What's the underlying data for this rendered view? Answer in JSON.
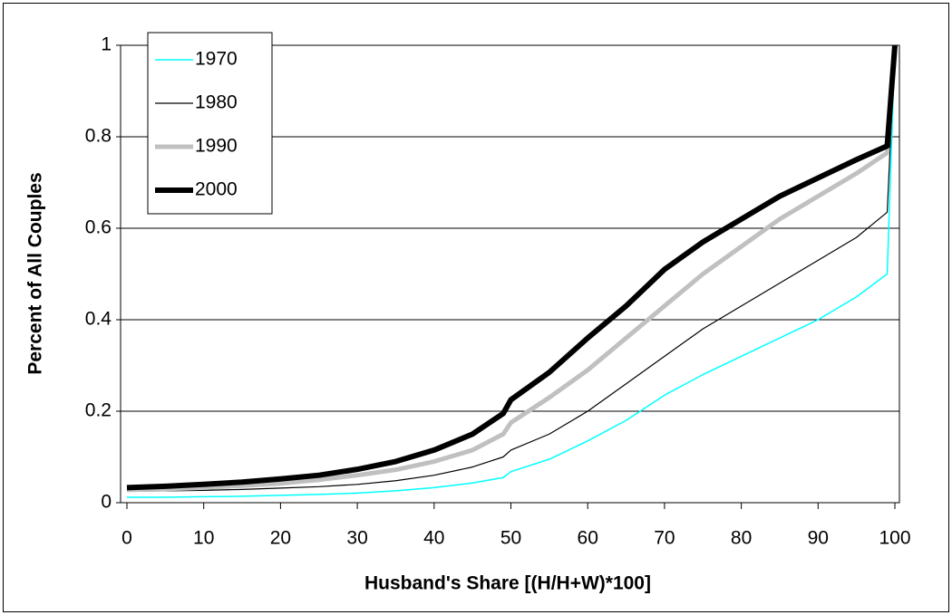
{
  "chart_data": {
    "type": "line",
    "xlabel": "Husband's Share [(H/H+W)*100]",
    "ylabel": "Percent of All Couples",
    "x": [
      0,
      5,
      10,
      15,
      20,
      25,
      30,
      35,
      40,
      45,
      49,
      50,
      55,
      60,
      65,
      70,
      75,
      80,
      85,
      90,
      95,
      99,
      100
    ],
    "series": [
      {
        "name": "1970",
        "color": "#00ffff",
        "line_width": 1.5,
        "values": [
          0.012,
          0.012,
          0.013,
          0.014,
          0.016,
          0.018,
          0.021,
          0.026,
          0.033,
          0.043,
          0.055,
          0.068,
          0.095,
          0.135,
          0.18,
          0.235,
          0.28,
          0.32,
          0.36,
          0.4,
          0.45,
          0.5,
          1.0
        ]
      },
      {
        "name": "1980",
        "color": "#000000",
        "line_width": 1.2,
        "values": [
          0.025,
          0.026,
          0.027,
          0.029,
          0.032,
          0.035,
          0.04,
          0.048,
          0.06,
          0.078,
          0.1,
          0.115,
          0.15,
          0.2,
          0.26,
          0.32,
          0.38,
          0.43,
          0.48,
          0.53,
          0.58,
          0.635,
          1.0
        ]
      },
      {
        "name": "1990",
        "color": "#c0c0c0",
        "line_width": 5,
        "values": [
          0.028,
          0.03,
          0.033,
          0.037,
          0.042,
          0.05,
          0.06,
          0.072,
          0.09,
          0.115,
          0.15,
          0.175,
          0.23,
          0.29,
          0.36,
          0.43,
          0.5,
          0.56,
          0.62,
          0.67,
          0.72,
          0.765,
          1.0
        ]
      },
      {
        "name": "2000",
        "color": "#000000",
        "line_width": 6,
        "values": [
          0.033,
          0.036,
          0.04,
          0.045,
          0.052,
          0.06,
          0.073,
          0.09,
          0.115,
          0.15,
          0.195,
          0.225,
          0.285,
          0.36,
          0.43,
          0.51,
          0.57,
          0.62,
          0.67,
          0.71,
          0.75,
          0.78,
          1.0
        ]
      }
    ],
    "xlim": [
      0,
      100
    ],
    "xticks": [
      0,
      10,
      20,
      30,
      40,
      50,
      60,
      70,
      80,
      90,
      100
    ],
    "ylim": [
      0,
      1
    ],
    "yticks": [
      0,
      0.2,
      0.4,
      0.6,
      0.8,
      1
    ],
    "grid": true,
    "legend": "upper left"
  }
}
